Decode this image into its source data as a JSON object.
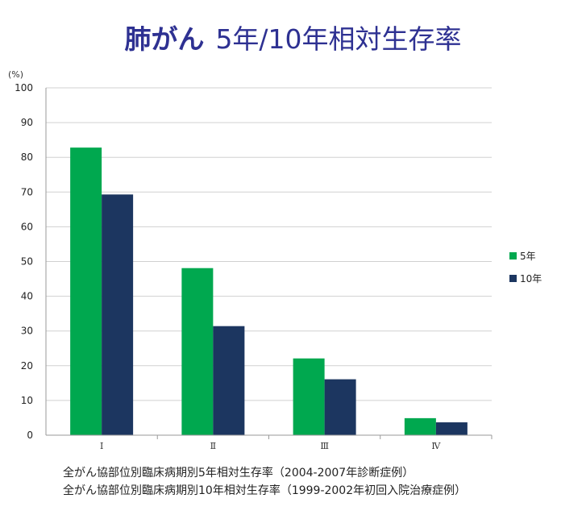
{
  "title": {
    "main": "肺がん",
    "sub": "5年/10年相対生存率"
  },
  "colors": {
    "series1": "#00a84f",
    "series2": "#1c3660",
    "title": "#2e3192",
    "grid": "#d0d0d0"
  },
  "chart_data": {
    "type": "bar",
    "ylabel": "(%)",
    "xlabel": "",
    "ylim": [
      0,
      100
    ],
    "yticks": [
      "0",
      "10",
      "20",
      "30",
      "40",
      "50",
      "60",
      "70",
      "80",
      "90",
      "100"
    ],
    "categories": [
      "Ⅰ",
      "Ⅱ",
      "Ⅲ",
      "Ⅳ"
    ],
    "series": [
      {
        "name": "5年",
        "values": [
          82.8,
          48.1,
          22.1,
          4.9
        ]
      },
      {
        "name": "10年",
        "values": [
          69.3,
          31.4,
          16.1,
          3.7
        ]
      }
    ],
    "grid": true,
    "legend_position": "right"
  },
  "notes": [
    "全がん協部位別臨床病期別5年相対生存率（2004-2007年診断症例）",
    "全がん協部位別臨床病期別10年相対生存率（1999-2002年初回入院治療症例）"
  ]
}
